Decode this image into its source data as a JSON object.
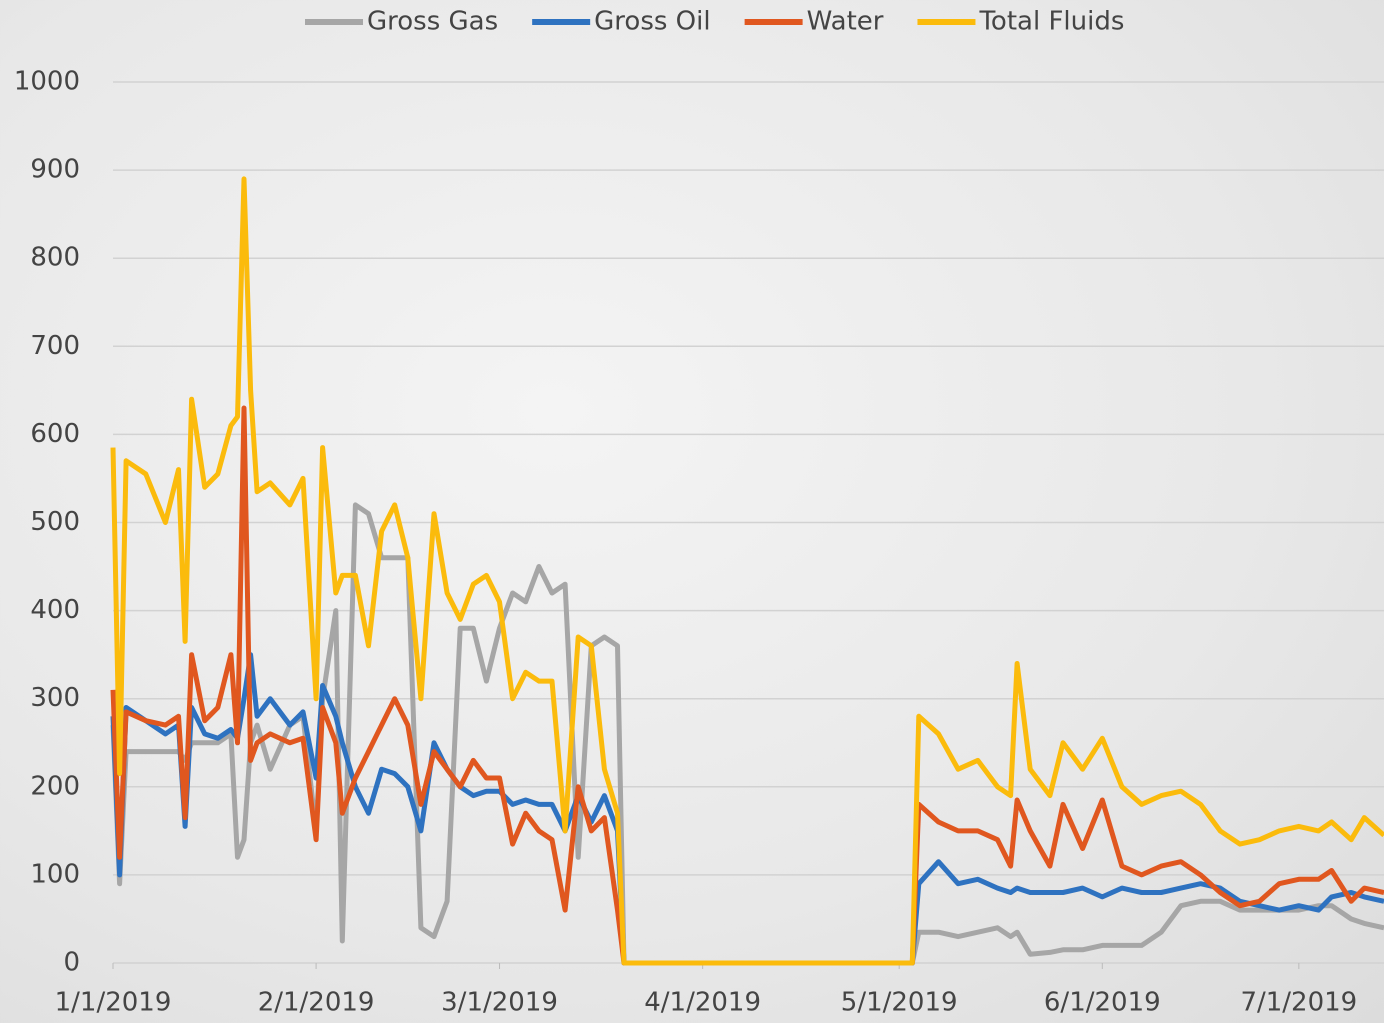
{
  "chart_data": {
    "type": "line",
    "x": [
      "2019-01-01",
      "2019-01-02",
      "2019-01-03",
      "2019-01-06",
      "2019-01-09",
      "2019-01-11",
      "2019-01-12",
      "2019-01-13",
      "2019-01-15",
      "2019-01-17",
      "2019-01-19",
      "2019-01-20",
      "2019-01-21",
      "2019-01-22",
      "2019-01-23",
      "2019-01-25",
      "2019-01-28",
      "2019-01-30",
      "2019-02-01",
      "2019-02-02",
      "2019-02-04",
      "2019-02-05",
      "2019-02-07",
      "2019-02-09",
      "2019-02-11",
      "2019-02-13",
      "2019-02-15",
      "2019-02-17",
      "2019-02-19",
      "2019-02-21",
      "2019-02-23",
      "2019-02-25",
      "2019-02-27",
      "2019-03-01",
      "2019-03-03",
      "2019-03-05",
      "2019-03-07",
      "2019-03-09",
      "2019-03-11",
      "2019-03-13",
      "2019-03-15",
      "2019-03-17",
      "2019-03-19",
      "2019-03-20",
      "2019-04-01",
      "2019-05-01",
      "2019-05-03",
      "2019-05-04",
      "2019-05-07",
      "2019-05-10",
      "2019-05-13",
      "2019-05-16",
      "2019-05-18",
      "2019-05-19",
      "2019-05-21",
      "2019-05-24",
      "2019-05-26",
      "2019-05-29",
      "2019-06-01",
      "2019-06-04",
      "2019-06-07",
      "2019-06-10",
      "2019-06-13",
      "2019-06-16",
      "2019-06-19",
      "2019-06-22",
      "2019-06-25",
      "2019-06-28",
      "2019-07-01",
      "2019-07-04",
      "2019-07-06",
      "2019-07-09",
      "2019-07-11",
      "2019-07-14"
    ],
    "series": [
      {
        "name": "Gross Gas",
        "color": "#a6a6a6",
        "values": [
          270,
          90,
          240,
          240,
          240,
          240,
          230,
          250,
          250,
          250,
          260,
          120,
          140,
          250,
          270,
          220,
          270,
          280,
          150,
          300,
          400,
          25,
          520,
          510,
          460,
          460,
          460,
          40,
          30,
          70,
          380,
          380,
          320,
          380,
          420,
          410,
          450,
          420,
          430,
          120,
          360,
          370,
          360,
          0,
          0,
          0,
          0,
          35,
          35,
          30,
          35,
          40,
          30,
          35,
          10,
          12,
          15,
          15,
          20,
          20,
          20,
          35,
          65,
          70,
          70,
          60,
          60,
          60,
          60,
          65,
          65,
          50,
          45,
          40
        ]
      },
      {
        "name": "Gross Oil",
        "color": "#2e72c0",
        "values": [
          280,
          100,
          290,
          275,
          260,
          270,
          155,
          290,
          260,
          255,
          265,
          255,
          300,
          350,
          280,
          300,
          270,
          285,
          210,
          315,
          280,
          250,
          200,
          170,
          220,
          215,
          200,
          150,
          250,
          220,
          200,
          190,
          195,
          195,
          180,
          185,
          180,
          180,
          150,
          190,
          160,
          190,
          150,
          0,
          0,
          0,
          0,
          90,
          115,
          90,
          95,
          85,
          80,
          85,
          80,
          80,
          80,
          85,
          75,
          85,
          80,
          80,
          85,
          90,
          85,
          70,
          65,
          60,
          65,
          60,
          75,
          80,
          75,
          70
        ]
      },
      {
        "name": "Water",
        "color": "#e0571f",
        "values": [
          310,
          120,
          285,
          275,
          270,
          280,
          165,
          350,
          275,
          290,
          350,
          250,
          630,
          230,
          250,
          260,
          250,
          255,
          140,
          290,
          250,
          170,
          210,
          240,
          270,
          300,
          270,
          180,
          240,
          220,
          200,
          230,
          210,
          210,
          135,
          170,
          150,
          140,
          60,
          200,
          150,
          165,
          60,
          0,
          0,
          0,
          0,
          180,
          160,
          150,
          150,
          140,
          110,
          185,
          150,
          110,
          180,
          130,
          185,
          110,
          100,
          110,
          115,
          100,
          80,
          65,
          70,
          90,
          95,
          95,
          105,
          70,
          85,
          80
        ]
      },
      {
        "name": "Total Fluids",
        "color": "#fbbb0c",
        "values": [
          585,
          215,
          570,
          555,
          500,
          560,
          365,
          640,
          540,
          555,
          610,
          620,
          890,
          650,
          535,
          545,
          520,
          550,
          300,
          585,
          420,
          440,
          440,
          360,
          490,
          520,
          460,
          300,
          510,
          420,
          390,
          430,
          440,
          410,
          300,
          330,
          320,
          320,
          150,
          370,
          360,
          220,
          170,
          0,
          0,
          0,
          0,
          280,
          260,
          220,
          230,
          200,
          190,
          340,
          220,
          190,
          250,
          220,
          255,
          200,
          180,
          190,
          195,
          180,
          150,
          135,
          140,
          150,
          155,
          150,
          160,
          140,
          165,
          145
        ]
      }
    ],
    "xlim": [
      "2019-01-01",
      "2019-07-14"
    ],
    "xticks": [
      {
        "value": "2019-01-01",
        "label": "1/1/2019"
      },
      {
        "value": "2019-02-01",
        "label": "2/1/2019"
      },
      {
        "value": "2019-03-01",
        "label": "3/1/2019"
      },
      {
        "value": "2019-04-01",
        "label": "4/1/2019"
      },
      {
        "value": "2019-05-01",
        "label": "5/1/2019"
      },
      {
        "value": "2019-06-01",
        "label": "6/1/2019"
      },
      {
        "value": "2019-07-01",
        "label": "7/1/2019"
      }
    ],
    "ylim": [
      0,
      1000
    ],
    "yticks": [
      0,
      100,
      200,
      300,
      400,
      500,
      600,
      700,
      800,
      900,
      1000
    ],
    "grid": true,
    "legend": "top"
  }
}
